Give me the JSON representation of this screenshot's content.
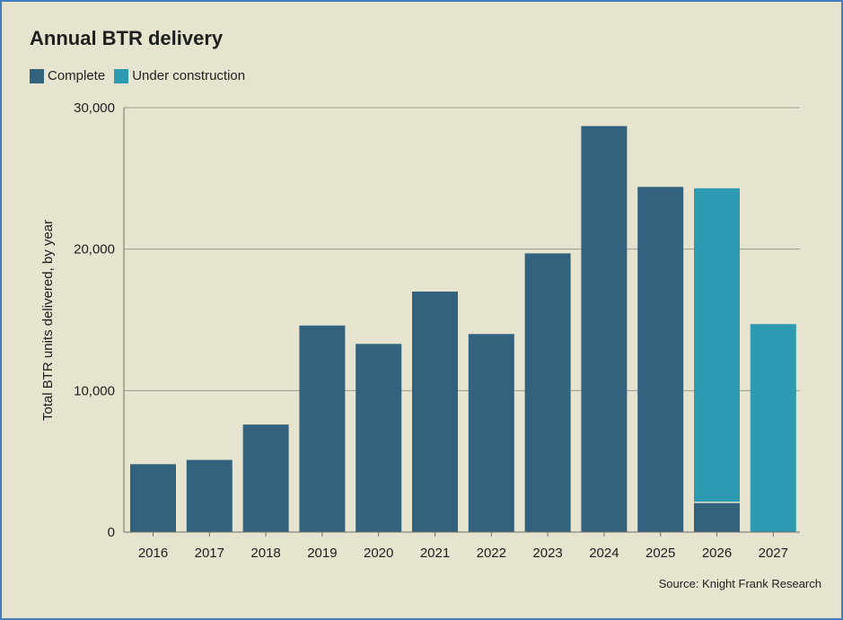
{
  "title": "Annual BTR delivery",
  "source": "Source: Knight Frank Research",
  "colors": {
    "complete": "#33627f",
    "under_construction": "#2c9ab0",
    "grid": "#9a9a90",
    "divider": "#e6e4cf"
  },
  "chart_data": {
    "type": "bar",
    "stacked": true,
    "title": "Annual BTR delivery",
    "ylabel": "Total BTR units delivered, by year",
    "xlabel": "",
    "ylim": [
      0,
      30000
    ],
    "yticks": [
      0,
      10000,
      20000,
      30000
    ],
    "ytick_labels": [
      "0",
      "10,000",
      "20,000",
      "30,000"
    ],
    "grid": true,
    "legend_position": "top-left",
    "categories": [
      "2016",
      "2017",
      "2018",
      "2019",
      "2020",
      "2021",
      "2022",
      "2023",
      "2024",
      "2025",
      "2026",
      "2027"
    ],
    "series": [
      {
        "name": "Complete",
        "color": "#33627f",
        "values": [
          4800,
          5100,
          7600,
          14600,
          13300,
          17000,
          14000,
          19700,
          28700,
          24400,
          2100,
          0
        ]
      },
      {
        "name": "Under construction",
        "color": "#2c9ab0",
        "values": [
          0,
          0,
          0,
          0,
          0,
          0,
          0,
          0,
          0,
          0,
          22200,
          14700
        ]
      }
    ]
  }
}
